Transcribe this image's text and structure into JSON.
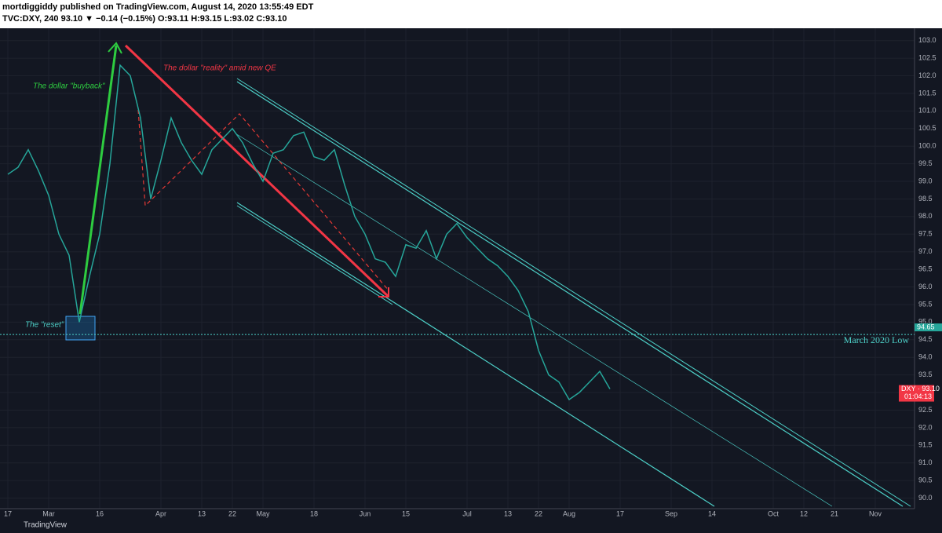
{
  "header": {
    "publisher": "mortdiggiddy published on TradingView.com, August 14, 2020 13:55:49 EDT",
    "symbol_line": "TVC:DXY, 240  93.10 ▼ −0.14 (−0.15%)  O:93.11  H:93.15  L:93.02  C:93.10"
  },
  "footer": {
    "brand": "TradingView"
  },
  "chart_data": {
    "type": "line",
    "color": "#26a69a",
    "categories": [
      "17",
      null,
      null,
      null,
      "Mar",
      null,
      null,
      null,
      null,
      "16",
      null,
      null,
      null,
      null,
      null,
      "Apr",
      null,
      null,
      null,
      "13",
      null,
      null,
      "22",
      null,
      null,
      "May",
      null,
      null,
      null,
      null,
      "18",
      null,
      null,
      null,
      null,
      "Jun",
      null,
      null,
      null,
      "15",
      null,
      null,
      null,
      null,
      null,
      "Jul",
      null,
      null,
      null,
      "13",
      null,
      null,
      "22",
      null,
      null,
      "Aug",
      null,
      null,
      null,
      null,
      "17",
      null,
      null,
      null,
      null,
      "Sep",
      null,
      null,
      null,
      "14",
      null,
      null,
      null,
      null,
      null,
      "Oct",
      null,
      null,
      "12",
      null,
      null,
      "21",
      null,
      null,
      null,
      "Nov",
      null,
      null,
      null,
      null
    ],
    "values": [
      99.2,
      99.4,
      99.9,
      99.3,
      98.6,
      97.5,
      96.9,
      95.0,
      96.3,
      97.5,
      99.5,
      102.3,
      102.0,
      100.8,
      98.5,
      99.6,
      100.8,
      100.1,
      99.6,
      99.2,
      99.9,
      100.2,
      100.5,
      100.1,
      99.5,
      99.0,
      99.8,
      99.9,
      100.3,
      100.4,
      99.7,
      99.6,
      99.9,
      98.9,
      98.0,
      97.5,
      96.8,
      96.7,
      96.3,
      97.2,
      97.1,
      97.6,
      96.8,
      97.5,
      97.8,
      97.4,
      97.1,
      96.8,
      96.6,
      96.3,
      95.9,
      95.3,
      94.2,
      93.5,
      93.3,
      92.8,
      93.0,
      93.3,
      93.6,
      93.1,
      null,
      null,
      null,
      null,
      null,
      null,
      null,
      null,
      null,
      null,
      null,
      null,
      null,
      null,
      null,
      null,
      null,
      null,
      null,
      null,
      null,
      null,
      null,
      null,
      null,
      null,
      null,
      null,
      null,
      null
    ],
    "ylim": [
      89.7,
      103.35
    ],
    "yticks": [
      {
        "value": 90,
        "label": "90.0"
      },
      {
        "value": 90.5,
        "label": "90.5"
      },
      {
        "value": 91,
        "label": "91.0"
      },
      {
        "value": 91.5,
        "label": "91.5"
      },
      {
        "value": 92,
        "label": "92.0"
      },
      {
        "value": 92.5,
        "label": "92.5"
      },
      {
        "value": 93,
        "label": "93.0"
      },
      {
        "value": 93.5,
        "label": "93.5"
      },
      {
        "value": 94,
        "label": "94.0"
      },
      {
        "value": 94.5,
        "label": "94.5"
      },
      {
        "value": 95,
        "label": "95.0"
      },
      {
        "value": 95.5,
        "label": "95.5"
      },
      {
        "value": 96,
        "label": "96.0"
      },
      {
        "value": 96.5,
        "label": "96.5"
      },
      {
        "value": 97,
        "label": "97.0"
      },
      {
        "value": 97.5,
        "label": "97.5"
      },
      {
        "value": 98,
        "label": "98.0"
      },
      {
        "value": 98.5,
        "label": "98.5"
      },
      {
        "value": 99,
        "label": "99.0"
      },
      {
        "value": 99.5,
        "label": "99.5"
      },
      {
        "value": 100,
        "label": "100.0"
      },
      {
        "value": 100.5,
        "label": "100.5"
      },
      {
        "value": 101,
        "label": "101.0"
      },
      {
        "value": 101.5,
        "label": "101.5"
      },
      {
        "value": 102,
        "label": "102.0"
      },
      {
        "value": 102.5,
        "label": "102.5"
      },
      {
        "value": 103,
        "label": "103.0"
      }
    ],
    "grid": true,
    "march_low": 94.65,
    "march_low_label": "March 2020 Low",
    "last_price_tag": "DXY · 93.10",
    "last_price": 93.1,
    "countdown": "01:04:13",
    "annotations": {
      "buyback": "The dollar \"buyback\"",
      "reality": "The dollar \"reality\" amid new QE",
      "reset": "The \"reset\""
    }
  }
}
